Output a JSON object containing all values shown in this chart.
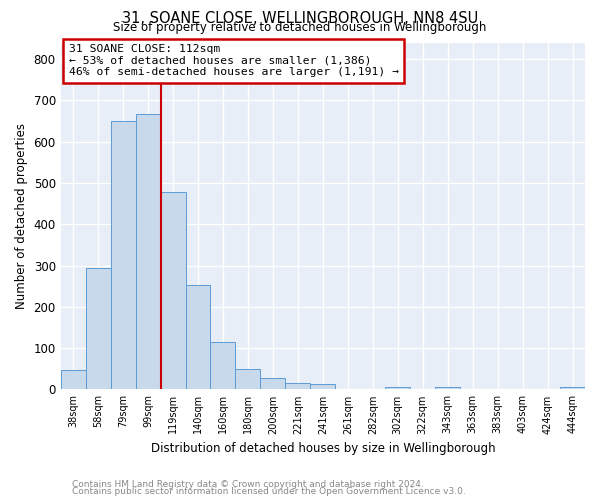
{
  "title": "31, SOANE CLOSE, WELLINGBOROUGH, NN8 4SU",
  "subtitle": "Size of property relative to detached houses in Wellingborough",
  "xlabel": "Distribution of detached houses by size in Wellingborough",
  "ylabel": "Number of detached properties",
  "bar_labels": [
    "38sqm",
    "58sqm",
    "79sqm",
    "99sqm",
    "119sqm",
    "140sqm",
    "160sqm",
    "180sqm",
    "200sqm",
    "221sqm",
    "241sqm",
    "261sqm",
    "282sqm",
    "302sqm",
    "322sqm",
    "343sqm",
    "363sqm",
    "383sqm",
    "403sqm",
    "424sqm",
    "444sqm"
  ],
  "bar_heights": [
    47,
    293,
    651,
    668,
    478,
    252,
    115,
    49,
    28,
    15,
    13,
    0,
    0,
    5,
    0,
    5,
    0,
    0,
    0,
    0,
    7
  ],
  "bar_color": "#c8d9ec",
  "bar_edge_color": "#5b9bd5",
  "vline_x_index": 4,
  "vline_color": "#cc0000",
  "ylim": [
    0,
    840
  ],
  "yticks": [
    0,
    100,
    200,
    300,
    400,
    500,
    600,
    700,
    800
  ],
  "annotation_title": "31 SOANE CLOSE: 112sqm",
  "annotation_line1": "← 53% of detached houses are smaller (1,386)",
  "annotation_line2": "46% of semi-detached houses are larger (1,191) →",
  "annotation_box_color": "#cc0000",
  "footer1": "Contains HM Land Registry data © Crown copyright and database right 2024.",
  "footer2": "Contains public sector information licensed under the Open Government Licence v3.0.",
  "plot_bg_color": "#e8eef7",
  "fig_bg_color": "#ffffff",
  "grid_color": "#ffffff",
  "footer_color": "#888888"
}
